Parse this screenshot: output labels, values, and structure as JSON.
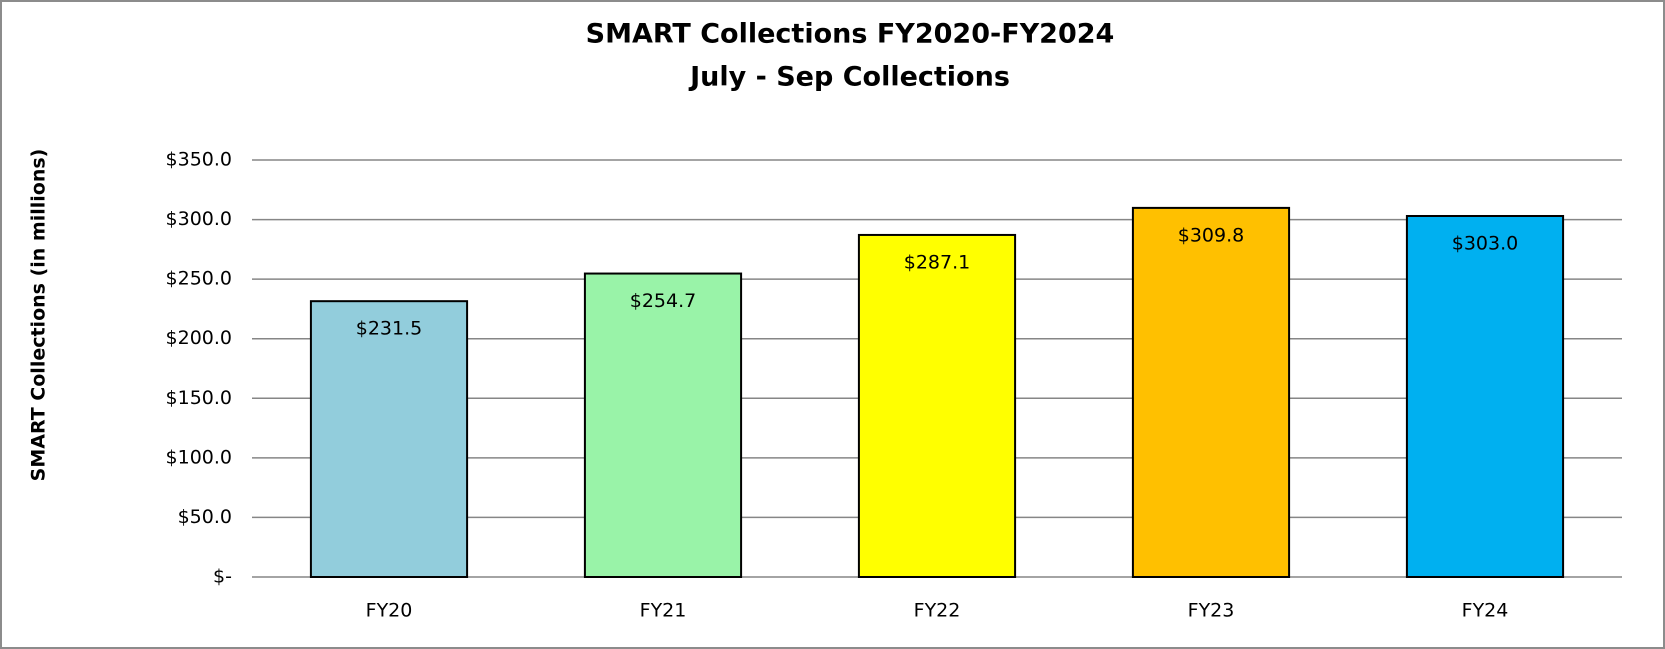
{
  "chart_data": {
    "type": "bar",
    "title": "SMART Collections FY2020-FY2024",
    "subtitle": "July - Sep Collections",
    "y_label": "SMART Collections (in millions)",
    "categories": [
      "FY20",
      "FY21",
      "FY22",
      "FY23",
      "FY24"
    ],
    "values": [
      231.5,
      254.7,
      287.1,
      309.8,
      303.0
    ],
    "value_labels": [
      "$231.5",
      "$254.7",
      "$287.1",
      "$309.8",
      "$303.0"
    ],
    "colors": [
      "#92cddc",
      "#99f3a8",
      "#ffff00",
      "#ffc000",
      "#00b0f0"
    ],
    "ylim": [
      0,
      350
    ],
    "yticks": [
      {
        "value": 0,
        "label": "$-"
      },
      {
        "value": 50,
        "label": "$50.0"
      },
      {
        "value": 100,
        "label": "$100.0"
      },
      {
        "value": 150,
        "label": "$150.0"
      },
      {
        "value": 200,
        "label": "$200.0"
      },
      {
        "value": 250,
        "label": "$250.0"
      },
      {
        "value": 300,
        "label": "$300.0"
      },
      {
        "value": 350,
        "label": "$350.0"
      }
    ],
    "grid": true
  }
}
